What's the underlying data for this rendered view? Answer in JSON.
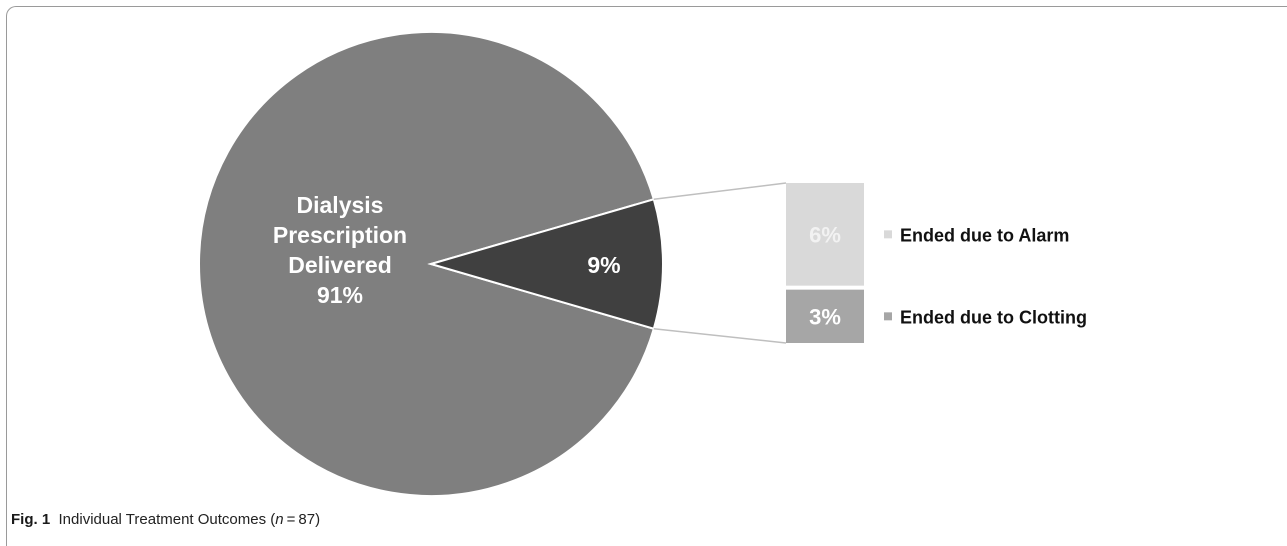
{
  "chart_data": {
    "type": "pie",
    "subtype": "bar-of-pie",
    "main_slices": [
      {
        "label_lines": [
          "Dialysis",
          "Prescription",
          "Delivered"
        ],
        "value": 91,
        "value_label": "91%",
        "color": "#7f7f7f"
      },
      {
        "label_lines": [],
        "value": 9,
        "value_label": "9%",
        "color": "#404040"
      }
    ],
    "breakdown": [
      {
        "name": "Ended due to Alarm",
        "value": 6,
        "value_label": "6%",
        "color": "#d9d9d9",
        "label_color": "#f2f2f2"
      },
      {
        "name": "Ended due to Clotting",
        "value": 3,
        "value_label": "3%",
        "color": "#a6a6a6",
        "label_color": "#ffffff"
      }
    ],
    "legend_position": "right"
  },
  "caption": {
    "fig_label": "Fig. 1",
    "text_before": "Individual Treatment Outcomes (",
    "n_var": "n",
    "n_eq": " = 87)"
  }
}
